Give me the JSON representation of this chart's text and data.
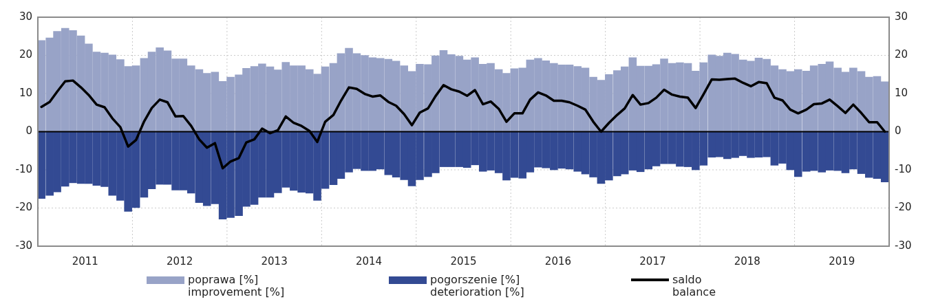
{
  "chart_data": {
    "type": "bar",
    "stacked": true,
    "legend": "bottom",
    "grid": true,
    "marker": "none",
    "x": [
      "2011-01-15",
      "2011-02-15",
      "2011-03-15",
      "2011-04-15",
      "2011-05-15",
      "2011-06-15",
      "2011-07-15",
      "2011-08-15",
      "2011-09-15",
      "2011-10-15",
      "2011-11-15",
      "2011-12-15",
      "2012-01-15",
      "2012-02-15",
      "2012-03-15",
      "2012-04-15",
      "2012-05-15",
      "2012-06-15",
      "2012-07-15",
      "2012-08-15",
      "2012-09-15",
      "2012-10-15",
      "2012-11-15",
      "2012-12-15",
      "2013-01-15",
      "2013-02-15",
      "2013-03-15",
      "2013-04-15",
      "2013-05-15",
      "2013-06-15",
      "2013-07-15",
      "2013-08-15",
      "2013-09-15",
      "2013-10-15",
      "2013-11-15",
      "2013-12-15",
      "2014-01-15",
      "2014-02-15",
      "2014-03-15",
      "2014-04-15",
      "2014-05-15",
      "2014-06-15",
      "2014-07-15",
      "2014-08-15",
      "2014-09-15",
      "2014-10-15",
      "2014-11-15",
      "2014-12-15",
      "2015-01-15",
      "2015-02-15",
      "2015-03-15",
      "2015-04-15",
      "2015-05-15",
      "2015-06-15",
      "2015-07-15",
      "2015-08-15",
      "2015-09-15",
      "2015-10-15",
      "2015-11-15",
      "2015-12-15",
      "2016-01-15",
      "2016-02-15",
      "2016-03-15",
      "2016-04-15",
      "2016-05-15",
      "2016-06-15",
      "2016-07-15",
      "2016-08-15",
      "2016-09-15",
      "2016-10-15",
      "2016-11-15",
      "2016-12-15",
      "2017-01-15",
      "2017-02-15",
      "2017-03-15",
      "2017-04-15",
      "2017-05-15",
      "2017-06-15",
      "2017-07-15",
      "2017-08-15",
      "2017-09-15",
      "2017-10-15",
      "2017-11-15",
      "2017-12-15",
      "2018-01-15",
      "2018-02-15",
      "2018-03-15",
      "2018-04-15",
      "2018-05-15",
      "2018-06-15",
      "2018-07-15",
      "2018-08-15",
      "2018-09-15",
      "2018-10-15",
      "2018-11-15",
      "2018-12-15",
      "2019-01-15",
      "2019-02-15",
      "2019-03-15",
      "2019-04-15",
      "2019-05-15",
      "2019-06-15",
      "2019-07-15",
      "2019-08-15",
      "2019-09-15",
      "2019-10-15",
      "2019-11-15",
      "2019-12-15"
    ],
    "series": [
      {
        "name": "poprawa [%]\nimprovement [%]",
        "color": "#98a3c7",
        "values": [
          23.9,
          24.6,
          26.3,
          27.1,
          26.5,
          25.1,
          23.0,
          20.9,
          20.6,
          20.1,
          18.9,
          17.1,
          17.3,
          19.2,
          20.9,
          22.0,
          21.2,
          19.1,
          19.1,
          17.3,
          16.3,
          15.3,
          15.6,
          13.2,
          14.3,
          14.9,
          16.6,
          17.1,
          17.8,
          17.0,
          16.2,
          18.2,
          17.3,
          17.3,
          16.3,
          15.1,
          17.0,
          17.9,
          20.5,
          21.9,
          20.5,
          20.0,
          19.4,
          19.2,
          19.0,
          18.5,
          17.3,
          15.8,
          17.7,
          17.6,
          19.9,
          21.3,
          20.2,
          19.8,
          18.8,
          19.4,
          17.7,
          17.9,
          16.3,
          15.3,
          16.5,
          16.7,
          18.8,
          19.2,
          18.6,
          17.9,
          17.5,
          17.5,
          17.1,
          16.7,
          14.3,
          13.5,
          15.0,
          16.0,
          17.0,
          19.4,
          17.2,
          17.2,
          17.6,
          19.1,
          17.9,
          18.1,
          17.9,
          15.9,
          18.1,
          20.1,
          19.8,
          20.6,
          20.3,
          18.8,
          18.5,
          19.3,
          19.0,
          17.3,
          16.3,
          15.8,
          16.3,
          15.9,
          17.3,
          17.7,
          18.3,
          16.7,
          15.6,
          16.7,
          15.8,
          14.3,
          14.5,
          13.1
        ]
      },
      {
        "name": "pogorszenie [%]\ndeterioration [%]",
        "color": "#334a93",
        "values": [
          -17.5,
          -16.7,
          -15.8,
          -14.3,
          -13.4,
          -13.6,
          -13.6,
          -14.1,
          -14.4,
          -16.7,
          -18.0,
          -20.9,
          -19.9,
          -17.2,
          -15.0,
          -13.8,
          -13.8,
          -15.3,
          -15.3,
          -16.1,
          -18.6,
          -19.4,
          -18.9,
          -22.9,
          -22.5,
          -22.0,
          -19.6,
          -19.1,
          -17.2,
          -17.2,
          -16.0,
          -14.6,
          -15.4,
          -15.9,
          -16.1,
          -18.0,
          -14.9,
          -13.9,
          -12.3,
          -10.6,
          -9.7,
          -10.2,
          -10.2,
          -9.8,
          -11.3,
          -11.9,
          -12.6,
          -14.2,
          -12.6,
          -11.8,
          -10.8,
          -9.2,
          -9.2,
          -9.2,
          -9.4,
          -8.7,
          -10.4,
          -10.1,
          -10.8,
          -12.7,
          -12.0,
          -12.2,
          -10.6,
          -9.3,
          -9.5,
          -10.0,
          -9.6,
          -9.8,
          -10.4,
          -11.1,
          -11.9,
          -13.6,
          -12.7,
          -11.6,
          -11.1,
          -10.1,
          -10.5,
          -9.8,
          -9.0,
          -8.4,
          -8.4,
          -9.1,
          -9.2,
          -10.0,
          -8.8,
          -6.7,
          -6.6,
          -7.1,
          -6.8,
          -6.3,
          -6.8,
          -6.7,
          -6.6,
          -8.8,
          -8.3,
          -10.0,
          -11.8,
          -10.4,
          -10.2,
          -10.6,
          -10.1,
          -10.2,
          -10.8,
          -9.8,
          -11.0,
          -12.0,
          -12.3,
          -13.2
        ]
      },
      {
        "name": "saldo\nbalance",
        "type": "line",
        "color": "#000000",
        "values": [
          6.5,
          7.8,
          10.5,
          13.2,
          13.4,
          11.6,
          9.6,
          7.1,
          6.4,
          3.5,
          1.2,
          -3.9,
          -2.2,
          2.7,
          6.2,
          8.4,
          7.7,
          4.0,
          4.1,
          1.5,
          -2.0,
          -4.2,
          -3.0,
          -9.6,
          -7.8,
          -6.9,
          -2.8,
          -2.0,
          0.8,
          -0.4,
          0.4,
          4.0,
          2.3,
          1.5,
          0.2,
          -2.7,
          2.6,
          4.4,
          8.1,
          11.6,
          11.2,
          9.9,
          9.2,
          9.5,
          7.8,
          6.8,
          4.6,
          1.7,
          5.0,
          6.1,
          9.3,
          12.2,
          11.1,
          10.5,
          9.4,
          10.9,
          7.2,
          7.9,
          6.0,
          2.6,
          4.8,
          4.8,
          8.4,
          10.3,
          9.5,
          8.1,
          8.1,
          7.7,
          6.8,
          5.8,
          2.6,
          0,
          2.3,
          4.4,
          6.1,
          9.6,
          7.1,
          7.5,
          8.9,
          11.0,
          9.7,
          9.2,
          8.9,
          6.2,
          9.8,
          13.7,
          13.6,
          13.8,
          13.9,
          12.8,
          11.9,
          13.0,
          12.7,
          8.9,
          8.2,
          5.8,
          4.8,
          5.8,
          7.2,
          7.4,
          8.4,
          6.7,
          4.9,
          7.1,
          4.9,
          2.5,
          2.5,
          0
        ]
      }
    ],
    "xlim": [
      "2011-01-01",
      "2020-01-01"
    ],
    "xticks": [
      {
        "value": "2011-01-01",
        "label": null
      },
      {
        "value": "2011-07-01",
        "label": "2011"
      },
      {
        "value": "2012-01-01",
        "label": null
      },
      {
        "value": "2012-07-01",
        "label": "2012"
      },
      {
        "value": "2013-01-01",
        "label": null
      },
      {
        "value": "2013-07-01",
        "label": "2013"
      },
      {
        "value": "2014-01-01",
        "label": null
      },
      {
        "value": "2014-07-01",
        "label": "2014"
      },
      {
        "value": "2015-01-01",
        "label": null
      },
      {
        "value": "2015-07-01",
        "label": "2015"
      },
      {
        "value": "2016-01-01",
        "label": null
      },
      {
        "value": "2016-07-01",
        "label": "2016"
      },
      {
        "value": "2017-01-01",
        "label": null
      },
      {
        "value": "2017-07-01",
        "label": "2017"
      },
      {
        "value": "2018-01-01",
        "label": null
      },
      {
        "value": "2018-07-01",
        "label": "2018"
      },
      {
        "value": "2019-01-01",
        "label": null
      },
      {
        "value": "2019-07-01",
        "label": "2019"
      },
      {
        "value": "2020-01-01",
        "label": null
      }
    ],
    "ylim": [
      -30,
      30
    ],
    "yticks": [
      -30,
      -20,
      -10,
      0,
      10,
      20,
      30
    ],
    "y2lim": [
      -30,
      30
    ],
    "y2ticks": [
      -30,
      -20,
      -10,
      0,
      10,
      20,
      30
    ],
    "ref_lines": [
      {
        "axis": "y",
        "value": 0,
        "color": "#000000"
      }
    ]
  }
}
